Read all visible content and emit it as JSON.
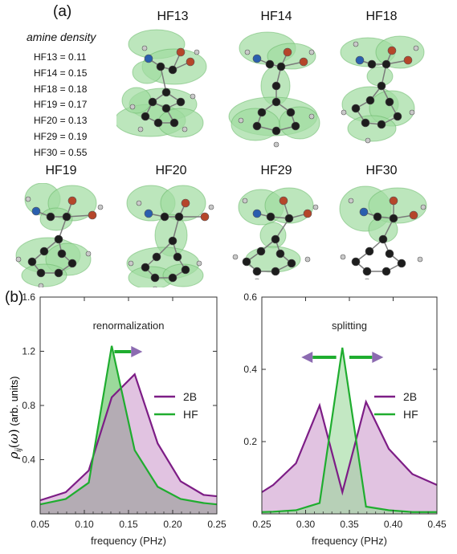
{
  "panel_a": {
    "label": "(a)",
    "amine_density": {
      "title": "amine density",
      "items": [
        "HF13 = 0.11",
        "HF14 = 0.15",
        "HF18 = 0.18",
        "HF19 = 0.17",
        "HF20 = 0.13",
        "HF29 = 0.19",
        "HF30 = 0.55"
      ]
    },
    "molecules": [
      "HF13",
      "HF14",
      "HF18",
      "HF19",
      "HF20",
      "HF29",
      "HF30"
    ]
  },
  "panel_b": {
    "label": "(b)",
    "ylabel": "ρ_ij(ω) (arb. units)"
  },
  "colors": {
    "green_line": "#1fad2f",
    "green_fill": "#9bd99b",
    "purple_line": "#7d1d86",
    "purple_fill": "#dcb8dc",
    "overlap_fill": "#a4a4a4",
    "blob_fill": "#9fdca0",
    "blob_stroke": "#5fb35f",
    "atom_c": "#1d1d1d",
    "atom_n": "#2a5fae",
    "atom_o": "#b5462a",
    "atom_h": "#c9c9c9"
  },
  "chart_data": [
    {
      "type": "area",
      "annotation": "renormalization",
      "xlabel": "frequency (PHz)",
      "ylabel": "ρ_ij(ω) (arb. units)",
      "xlim": [
        0.05,
        0.25
      ],
      "ylim": [
        0,
        1.6
      ],
      "xticks": [
        "0.05",
        "0.10",
        "0.15",
        "0.20",
        "0.25"
      ],
      "yticks": [
        "0.4",
        "0.8",
        "1.2",
        "1.6"
      ],
      "legend_position": "middle-right",
      "grid": false,
      "series": [
        {
          "name": "2B",
          "color": "#7d1d86",
          "x": [
            0.05,
            0.079,
            0.105,
            0.131,
            0.157,
            0.183,
            0.209,
            0.235,
            0.25
          ],
          "values": [
            0.1,
            0.16,
            0.32,
            0.86,
            1.03,
            0.52,
            0.24,
            0.14,
            0.13
          ]
        },
        {
          "name": "HF",
          "color": "#1fad2f",
          "x": [
            0.05,
            0.079,
            0.105,
            0.131,
            0.157,
            0.183,
            0.209,
            0.235,
            0.25
          ],
          "values": [
            0.07,
            0.11,
            0.23,
            1.24,
            0.47,
            0.2,
            0.11,
            0.08,
            0.07
          ]
        }
      ]
    },
    {
      "type": "area",
      "annotation": "splitting",
      "xlabel": "frequency (PHz)",
      "ylabel": "",
      "xlim": [
        0.25,
        0.45
      ],
      "ylim": [
        0,
        0.6
      ],
      "xticks": [
        "0.25",
        "0.30",
        "0.35",
        "0.40",
        "0.45"
      ],
      "yticks": [
        "0.2",
        "0.4",
        "0.6"
      ],
      "legend_position": "middle-right",
      "grid": false,
      "series": [
        {
          "name": "2B",
          "color": "#7d1d86",
          "x": [
            0.25,
            0.263,
            0.289,
            0.316,
            0.342,
            0.369,
            0.395,
            0.422,
            0.45
          ],
          "values": [
            0.06,
            0.08,
            0.14,
            0.3,
            0.06,
            0.31,
            0.18,
            0.11,
            0.08
          ]
        },
        {
          "name": "HF",
          "color": "#1fad2f",
          "x": [
            0.25,
            0.263,
            0.289,
            0.316,
            0.342,
            0.369,
            0.395,
            0.422,
            0.45
          ],
          "values": [
            0.005,
            0.006,
            0.01,
            0.03,
            0.46,
            0.02,
            0.01,
            0.005,
            0.005
          ]
        }
      ]
    }
  ]
}
